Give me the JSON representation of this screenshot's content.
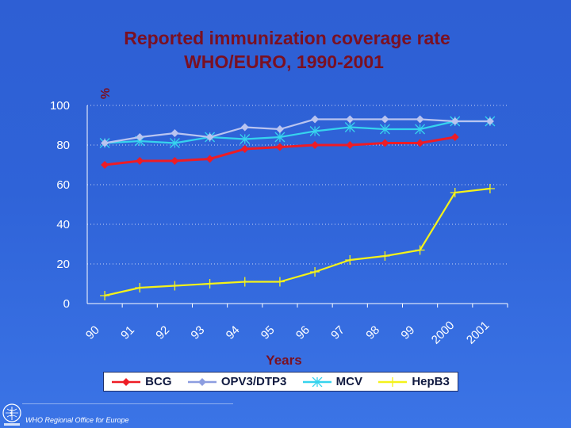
{
  "chart_data": {
    "type": "line",
    "title": "Reported immunization coverage rate",
    "subtitle": "WHO/EURO, 1990-2001",
    "ylabel": "%",
    "xlabel": "Years",
    "ylim": [
      0,
      100
    ],
    "yticks": [
      0,
      20,
      40,
      60,
      80,
      100
    ],
    "categories": [
      "90",
      "91",
      "92",
      "93",
      "94",
      "95",
      "96",
      "97",
      "98",
      "99",
      "2000",
      "2001"
    ],
    "grid": "horizontal dashed",
    "legend": "bottom",
    "series": [
      {
        "name": "BCG",
        "color": "#ee1c25",
        "marker": "diamond",
        "values": [
          70,
          72,
          72,
          73,
          78,
          79,
          80,
          80,
          81,
          81,
          84,
          null
        ]
      },
      {
        "name": "OPV3/DTP3",
        "color": "#b9c4f0",
        "marker": "diamond",
        "values": [
          81,
          84,
          86,
          84,
          89,
          88,
          93,
          93,
          93,
          93,
          92,
          92
        ]
      },
      {
        "name": "MCV",
        "color": "#36d3ee",
        "marker": "asterisk",
        "values": [
          81,
          82,
          81,
          84,
          83,
          84,
          87,
          89,
          88,
          88,
          92,
          92
        ]
      },
      {
        "name": "HepB3",
        "color": "#f4f21a",
        "marker": "plus",
        "values": [
          4,
          8,
          9,
          10,
          11,
          11,
          16,
          22,
          24,
          27,
          56,
          58
        ]
      }
    ]
  },
  "footer": {
    "text": "WHO Regional Office for Europe"
  }
}
